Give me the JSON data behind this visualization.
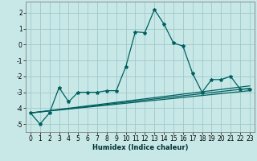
{
  "title": "",
  "xlabel": "Humidex (Indice chaleur)",
  "ylabel": "",
  "background_color": "#c8e8e8",
  "grid_color": "#a0c8c8",
  "line_color": "#006060",
  "xlim": [
    -0.5,
    23.5
  ],
  "ylim": [
    -5.5,
    2.7
  ],
  "yticks": [
    -5,
    -4,
    -3,
    -2,
    -1,
    0,
    1,
    2
  ],
  "xticks": [
    0,
    1,
    2,
    3,
    4,
    5,
    6,
    7,
    8,
    9,
    10,
    11,
    12,
    13,
    14,
    15,
    16,
    17,
    18,
    19,
    20,
    21,
    22,
    23
  ],
  "series": [
    [
      0,
      -4.3
    ],
    [
      1,
      -5.0
    ],
    [
      2,
      -4.3
    ],
    [
      3,
      -2.7
    ],
    [
      4,
      -3.6
    ],
    [
      5,
      -3.0
    ],
    [
      6,
      -3.0
    ],
    [
      7,
      -3.0
    ],
    [
      8,
      -2.9
    ],
    [
      9,
      -2.9
    ],
    [
      10,
      -1.4
    ],
    [
      11,
      0.8
    ],
    [
      12,
      0.75
    ],
    [
      13,
      2.2
    ],
    [
      14,
      1.3
    ],
    [
      15,
      0.1
    ],
    [
      16,
      -0.1
    ],
    [
      17,
      -1.8
    ],
    [
      18,
      -3.0
    ],
    [
      19,
      -2.2
    ],
    [
      20,
      -2.2
    ],
    [
      21,
      -2.0
    ],
    [
      22,
      -2.8
    ],
    [
      23,
      -2.8
    ]
  ],
  "extra_lines": [
    [
      [
        0,
        -4.3
      ],
      [
        23,
        -2.6
      ]
    ],
    [
      [
        0,
        -4.3
      ],
      [
        23,
        -2.75
      ]
    ],
    [
      [
        0,
        -4.3
      ],
      [
        23,
        -2.9
      ]
    ]
  ],
  "xlabel_fontsize": 6,
  "xlabel_color": "#003030",
  "tick_fontsize": 5.5,
  "linewidth": 0.9,
  "markersize": 3.0
}
